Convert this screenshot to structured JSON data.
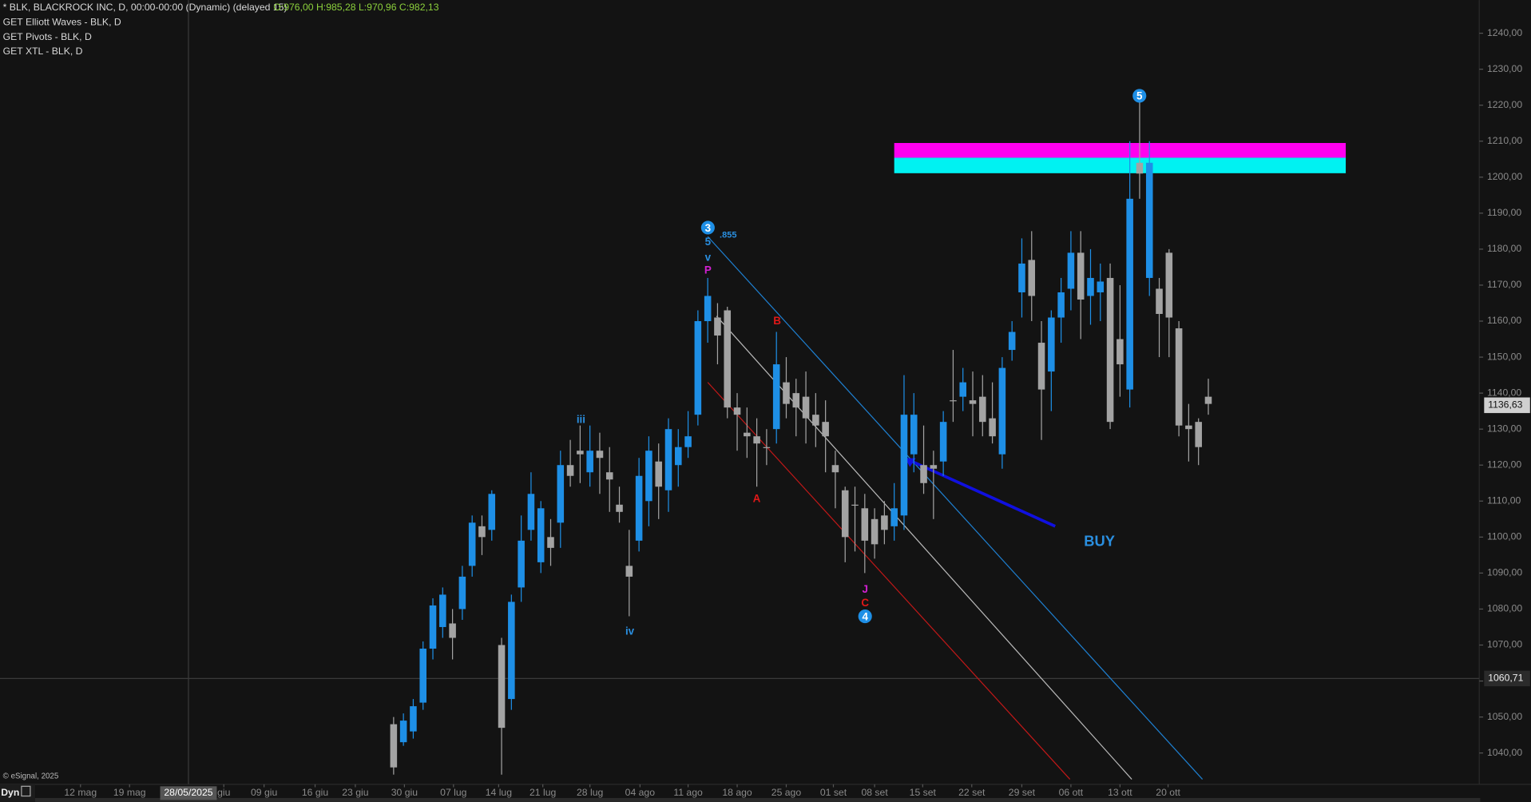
{
  "header": {
    "symbol": "* BLK, BLACKROCK INC, D, 00:00-00:00 (Dynamic) (delayed 15)",
    "ohlc": "O:976,00 H:985,28 L:970,96 C:982,13",
    "studies": [
      "GET Elliott Waves - BLK, D",
      "GET Pivots - BLK, D",
      "GET XTL - BLK, D"
    ],
    "copyright": "© eSignal, 2025",
    "mode": "Dyn"
  },
  "chart_data": {
    "type": "candlestick",
    "up_color": "#1e8fe6",
    "down_color": "#a3a3a3",
    "open": [
      1048,
      1043,
      1046,
      1054,
      1069,
      1075,
      1076,
      1080,
      1092,
      1103,
      1102,
      1070,
      1055,
      1086,
      1102,
      1093,
      1100,
      1104,
      1120,
      1124,
      1118,
      1124,
      1118,
      1109,
      1092,
      1099,
      1110,
      1121,
      1113,
      1120,
      1125,
      1134,
      1160,
      1161,
      1163,
      1136,
      1129,
      1128,
      1125,
      1130,
      1143,
      1140,
      1139,
      1134,
      1132,
      1120,
      1113,
      1109,
      1108,
      1105,
      1106,
      1103,
      1106,
      1123,
      1120,
      1120,
      1121,
      1138,
      1139,
      1138,
      1139,
      1133,
      1123,
      1152,
      1168,
      1177,
      1154,
      1146,
      1161,
      1169,
      1179,
      1167,
      1168,
      1172,
      1155,
      1141,
      1204,
      1172,
      1169,
      1179,
      1158,
      1131,
      1132,
      1139
    ],
    "high": [
      1050,
      1051,
      1055,
      1071,
      1083,
      1086,
      1080,
      1092,
      1106,
      1106,
      1113,
      1072,
      1084,
      1106,
      1118,
      1110,
      1105,
      1124,
      1127,
      1131,
      1131,
      1129,
      1125,
      1114,
      1102,
      1122,
      1128,
      1126,
      1133,
      1130,
      1135,
      1163,
      1172,
      1165,
      1164,
      1140,
      1136,
      1133,
      1130,
      1157,
      1150,
      1144,
      1146,
      1140,
      1138,
      1124,
      1114,
      1114,
      1112,
      1108,
      1110,
      1115,
      1145,
      1140,
      1131,
      1124,
      1135,
      1152,
      1147,
      1146,
      1145,
      1143,
      1150,
      1160,
      1183,
      1185,
      1160,
      1163,
      1172,
      1185,
      1185,
      1180,
      1176,
      1176,
      1170,
      1210,
      1221,
      1210,
      1172,
      1180,
      1160,
      1137,
      1133,
      1144
    ],
    "low": [
      1034,
      1042,
      1044,
      1052,
      1066,
      1072,
      1066,
      1077,
      1089,
      1095,
      1099,
      1034,
      1052,
      1082,
      1099,
      1090,
      1092,
      1097,
      1114,
      1115,
      1114,
      1112,
      1107,
      1104,
      1078,
      1096,
      1103,
      1105,
      1107,
      1114,
      1122,
      1131,
      1154,
      1148,
      1133,
      1124,
      1122,
      1114,
      1120,
      1126,
      1133,
      1128,
      1126,
      1125,
      1118,
      1108,
      1093,
      1096,
      1090,
      1094,
      1098,
      1099,
      1102,
      1118,
      1112,
      1105,
      1117,
      1132,
      1135,
      1128,
      1128,
      1126,
      1119,
      1149,
      1161,
      1160,
      1127,
      1135,
      1154,
      1163,
      1155,
      1159,
      1160,
      1130,
      1139,
      1136,
      1194,
      1167,
      1150,
      1150,
      1128,
      1121,
      1120,
      1134
    ],
    "close": [
      1036,
      1049,
      1053,
      1069,
      1081,
      1084,
      1072,
      1089,
      1104,
      1100,
      1112,
      1047,
      1082,
      1099,
      1112,
      1108,
      1097,
      1120,
      1117,
      1123,
      1124,
      1122,
      1116,
      1107,
      1089,
      1117,
      1124,
      1114,
      1130,
      1125,
      1128,
      1160,
      1167,
      1156,
      1136,
      1134,
      1128,
      1126,
      1125,
      1148,
      1137,
      1136,
      1133,
      1131,
      1128,
      1118,
      1100,
      1109,
      1099,
      1098,
      1102,
      1108,
      1134,
      1134,
      1115,
      1119,
      1132,
      1138,
      1143,
      1137,
      1132,
      1128,
      1147,
      1157,
      1176,
      1167,
      1141,
      1161,
      1168,
      1179,
      1166,
      1172,
      1171,
      1132,
      1148,
      1194,
      1201,
      1204,
      1162,
      1161,
      1131,
      1130,
      1125,
      1137
    ],
    "xlim": [
      -40.1,
      110.6
    ],
    "xticks": [
      {
        "value": -31.9,
        "label": "12 mag"
      },
      {
        "value": -26.9,
        "label": "19 mag"
      },
      {
        "value": -17.3,
        "label": "giu"
      },
      {
        "value": -13.2,
        "label": "09 giu"
      },
      {
        "value": -8,
        "label": "16 giu"
      },
      {
        "value": -3.9,
        "label": "23 giu"
      },
      {
        "value": 1.1,
        "label": "30 giu"
      },
      {
        "value": 6.1,
        "label": "07 lug"
      },
      {
        "value": 10.7,
        "label": "14 lug"
      },
      {
        "value": 15.2,
        "label": "21 lug"
      },
      {
        "value": 20,
        "label": "28 lug"
      },
      {
        "value": 25.1,
        "label": "04 ago"
      },
      {
        "value": 30,
        "label": "11 ago"
      },
      {
        "value": 35,
        "label": "18 ago"
      },
      {
        "value": 40,
        "label": "25 ago"
      },
      {
        "value": 44.8,
        "label": "01 set"
      },
      {
        "value": 49,
        "label": "08 set"
      },
      {
        "value": 53.9,
        "label": "15 set"
      },
      {
        "value": 58.9,
        "label": "22 set"
      },
      {
        "value": 64,
        "label": "29 set"
      },
      {
        "value": 69,
        "label": "06 ott"
      },
      {
        "value": 74,
        "label": "13 ott"
      },
      {
        "value": 78.9,
        "label": "20 ott"
      }
    ],
    "ylim": [
      1031.3,
      1249.2
    ],
    "yticks": [
      {
        "value": 1040,
        "label": "1040,00"
      },
      {
        "value": 1050,
        "label": "1050,00"
      },
      {
        "value": 1060,
        "label": "1060,00"
      },
      {
        "value": 1070,
        "label": "1070,00"
      },
      {
        "value": 1080,
        "label": "1080,00"
      },
      {
        "value": 1090,
        "label": "1090,00"
      },
      {
        "value": 1100,
        "label": "1100,00"
      },
      {
        "value": 1110,
        "label": "1110,00"
      },
      {
        "value": 1120,
        "label": "1120,00"
      },
      {
        "value": 1130,
        "label": "1130,00"
      },
      {
        "value": 1140,
        "label": "1140,00"
      },
      {
        "value": 1150,
        "label": "1150,00"
      },
      {
        "value": 1160,
        "label": "1160,00"
      },
      {
        "value": 1170,
        "label": "1170,00"
      },
      {
        "value": 1180,
        "label": "1180,00"
      },
      {
        "value": 1190,
        "label": "1190,00"
      },
      {
        "value": 1200,
        "label": "1200,00"
      },
      {
        "value": 1210,
        "label": "1210,00"
      },
      {
        "value": 1220,
        "label": "1220,00"
      },
      {
        "value": 1230,
        "label": "1230,00"
      },
      {
        "value": 1240,
        "label": "1240,00"
      }
    ],
    "crosshair": {
      "x": {
        "value": -20.9,
        "label": "28/05/2025"
      },
      "y": {
        "value": 1060.71,
        "label": "1060,71"
      }
    },
    "last_price": {
      "value": 1136.63,
      "label": "1136,63"
    },
    "zones": [
      {
        "from": 1205.4,
        "to": 1209.5,
        "start": 51,
        "end": 97,
        "color": "#ff00f0"
      },
      {
        "from": 1201.1,
        "to": 1205.4,
        "start": 51,
        "end": 97,
        "color": "#00f2f2"
      }
    ],
    "lines": [
      {
        "x": [
          32,
          82.4
        ],
        "y": [
          1183.5,
          1032.7
        ],
        "color": "#1e7fd0"
      },
      {
        "x": [
          32.9,
          75.2
        ],
        "y": [
          1161.4,
          1032.7
        ],
        "color": "#b8b8b8"
      },
      {
        "x": [
          32,
          68.9
        ],
        "y": [
          1143,
          1032.7
        ],
        "color": "#c01818"
      },
      {
        "x": [
          67.4,
          52.1
        ],
        "y": [
          1103,
          1121.9
        ],
        "color": "#1010e0"
      }
    ],
    "annotations": [
      "3",
      "5",
      ".855",
      "v",
      "P",
      "B",
      "A",
      "iii",
      "iv",
      "J",
      "C",
      "4",
      "5",
      "BUY"
    ]
  }
}
